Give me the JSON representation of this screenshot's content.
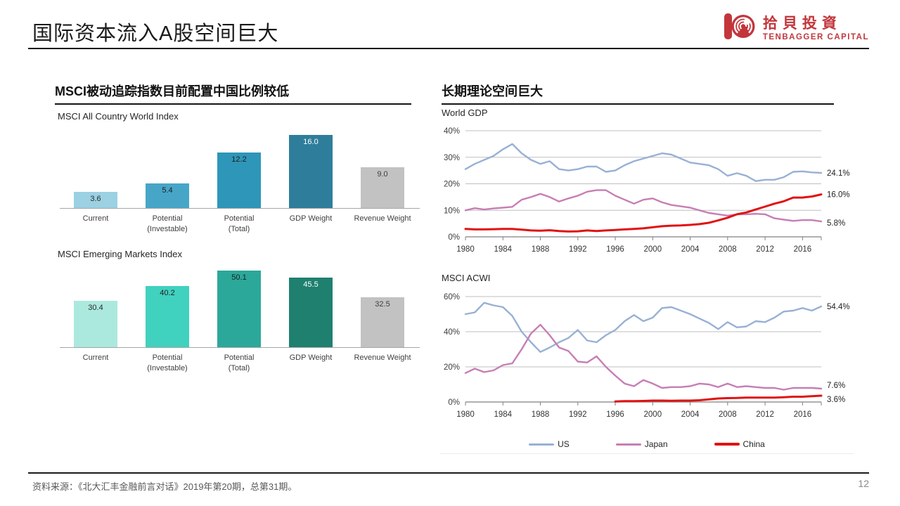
{
  "slide": {
    "title": "国际资本流入A股空间巨大",
    "page_number": "12"
  },
  "logo": {
    "cn": "拾貝投資",
    "en": "TENBAGGER CAPITAL",
    "color": "#c2363b"
  },
  "left_panel": {
    "header": "MSCI被动追踪指数目前配置中国比例较低"
  },
  "right_panel": {
    "header": "长期理论空间巨大"
  },
  "footer": {
    "source": "资料来源：《北大汇丰金融前言对话》2019年第20期，总第31期。"
  },
  "legend": [
    {
      "label": "US",
      "color": "#98b1d4",
      "thickness": 3
    },
    {
      "label": "Japan",
      "color": "#c77eb5",
      "thickness": 3
    },
    {
      "label": "China",
      "color": "#e11212",
      "thickness": 4
    }
  ],
  "chart_data": [
    {
      "type": "bar",
      "title": "MSCI All Country World Index",
      "categories": [
        "Current",
        "Potential\n(Investable)",
        "Potential\n(Total)",
        "GDP Weight",
        "Revenue Weight"
      ],
      "values": [
        3.6,
        5.4,
        12.2,
        16.0,
        9.0
      ],
      "bar_colors": [
        "#9bd1e2",
        "#47a6c8",
        "#2e96b8",
        "#2e7e9b",
        "#c2c2c2"
      ],
      "label_colors": [
        "#2b2b2b",
        "#1f1f1f",
        "#1f1f1f",
        "#ffffff",
        "#3f3f3f"
      ],
      "ylim": [
        0,
        16.5
      ],
      "grid": false
    },
    {
      "type": "bar",
      "title": "MSCI Emerging Markets Index",
      "categories": [
        "Current",
        "Potential\n(Investable)",
        "Potential\n(Total)",
        "GDP Weight",
        "Revenue Weight"
      ],
      "values": [
        30.4,
        40.2,
        50.1,
        45.5,
        32.5
      ],
      "bar_colors": [
        "#abe9de",
        "#41d1bf",
        "#2ba89a",
        "#1f8070",
        "#c2c2c2"
      ],
      "label_colors": [
        "#2b2b2b",
        "#1f1f1f",
        "#1f1f1f",
        "#ffffff",
        "#3f3f3f"
      ],
      "ylim": [
        0,
        52
      ],
      "grid": false
    },
    {
      "type": "line",
      "title": "World GDP",
      "x_start": 1980,
      "x_end": 2018,
      "x_ticks": [
        1980,
        1984,
        1988,
        1992,
        1996,
        2000,
        2004,
        2008,
        2012,
        2016
      ],
      "y_ticks": [
        0,
        10,
        20,
        30,
        40
      ],
      "ylim": [
        0,
        40
      ],
      "grid": true,
      "legend_position": "shared-bottom",
      "series": [
        {
          "name": "US",
          "color": "#98b1d4",
          "width": 2.4,
          "end_label": "24.1%",
          "end_dy": 0,
          "values": [
            25.5,
            27.5,
            29,
            30.5,
            33,
            35,
            31.5,
            29,
            27.5,
            28.5,
            25.5,
            25,
            25.5,
            26.5,
            26.5,
            24.5,
            25,
            27,
            28.5,
            29.5,
            30.5,
            31.5,
            31,
            29.5,
            28,
            27.5,
            27,
            25.5,
            23,
            24,
            23,
            21,
            21.5,
            21.5,
            22.5,
            24.5,
            24.7,
            24.3,
            24.1
          ]
        },
        {
          "name": "Japan",
          "color": "#c77eb5",
          "width": 2.4,
          "end_label": "5.8%",
          "end_dy": 2,
          "values": [
            10,
            10.8,
            10.3,
            10.7,
            11,
            11.3,
            14,
            15,
            16.2,
            15,
            13.3,
            14.5,
            15.5,
            17,
            17.6,
            17.6,
            15.5,
            14,
            12.5,
            14,
            14.5,
            13,
            12,
            11.5,
            11,
            10,
            9,
            8.5,
            8,
            8.5,
            8.5,
            8.7,
            8.5,
            7,
            6.5,
            6,
            6.3,
            6.3,
            5.8
          ]
        },
        {
          "name": "China",
          "color": "#e11212",
          "width": 3,
          "end_label": "16.0%",
          "end_dy": 0,
          "values": [
            3,
            2.8,
            2.8,
            2.9,
            3,
            3,
            2.7,
            2.4,
            2.3,
            2.5,
            2.2,
            2,
            2.1,
            2.4,
            2.2,
            2.4,
            2.6,
            2.8,
            3,
            3.2,
            3.6,
            4,
            4.2,
            4.3,
            4.5,
            4.8,
            5.3,
            6.2,
            7.2,
            8.5,
            9.2,
            10.3,
            11.4,
            12.5,
            13.4,
            14.8,
            14.8,
            15.2,
            16.0
          ]
        }
      ]
    },
    {
      "type": "line",
      "title": "MSCI ACWI",
      "x_start": 1980,
      "x_end": 2018,
      "x_ticks": [
        1980,
        1984,
        1988,
        1992,
        1996,
        2000,
        2004,
        2008,
        2012,
        2016
      ],
      "y_ticks": [
        0,
        20,
        40,
        60
      ],
      "ylim": [
        0,
        60
      ],
      "grid": true,
      "legend_position": "shared-bottom",
      "series": [
        {
          "name": "US",
          "color": "#98b1d4",
          "width": 2.4,
          "end_label": "54.4%",
          "end_dy": 0,
          "values": [
            50,
            51,
            56.5,
            55,
            54,
            49,
            40,
            34,
            28.5,
            31,
            34,
            36.5,
            41,
            35,
            34,
            38,
            41,
            46,
            49.5,
            46,
            48,
            53.5,
            54,
            52,
            50,
            47.5,
            45,
            41.5,
            45.5,
            42.5,
            43,
            46,
            45.5,
            48,
            51.5,
            52,
            53.5,
            52,
            54.4
          ]
        },
        {
          "name": "Japan",
          "color": "#c77eb5",
          "width": 2.4,
          "end_label": "7.6%",
          "end_dy": -5,
          "values": [
            16.5,
            19,
            17,
            18,
            21,
            22,
            30,
            39,
            44,
            38,
            31,
            29,
            23,
            22.5,
            26,
            20,
            15,
            10.5,
            9,
            12.5,
            10.5,
            8,
            8.5,
            8.5,
            9,
            10.5,
            10,
            8.5,
            10.5,
            8.5,
            9,
            8.5,
            8,
            8,
            7,
            8,
            8,
            8,
            7.6
          ]
        },
        {
          "name": "China",
          "color": "#e11212",
          "width": 3,
          "end_label": "3.6%",
          "end_dy": 5,
          "values": [
            null,
            null,
            null,
            null,
            null,
            null,
            null,
            null,
            null,
            null,
            null,
            null,
            null,
            null,
            null,
            null,
            0.3,
            0.5,
            0.5,
            0.6,
            0.8,
            0.8,
            0.7,
            0.8,
            0.8,
            1,
            1.5,
            2,
            2.2,
            2.3,
            2.5,
            2.5,
            2.5,
            2.5,
            2.7,
            3,
            3,
            3.3,
            3.6
          ]
        }
      ]
    }
  ]
}
